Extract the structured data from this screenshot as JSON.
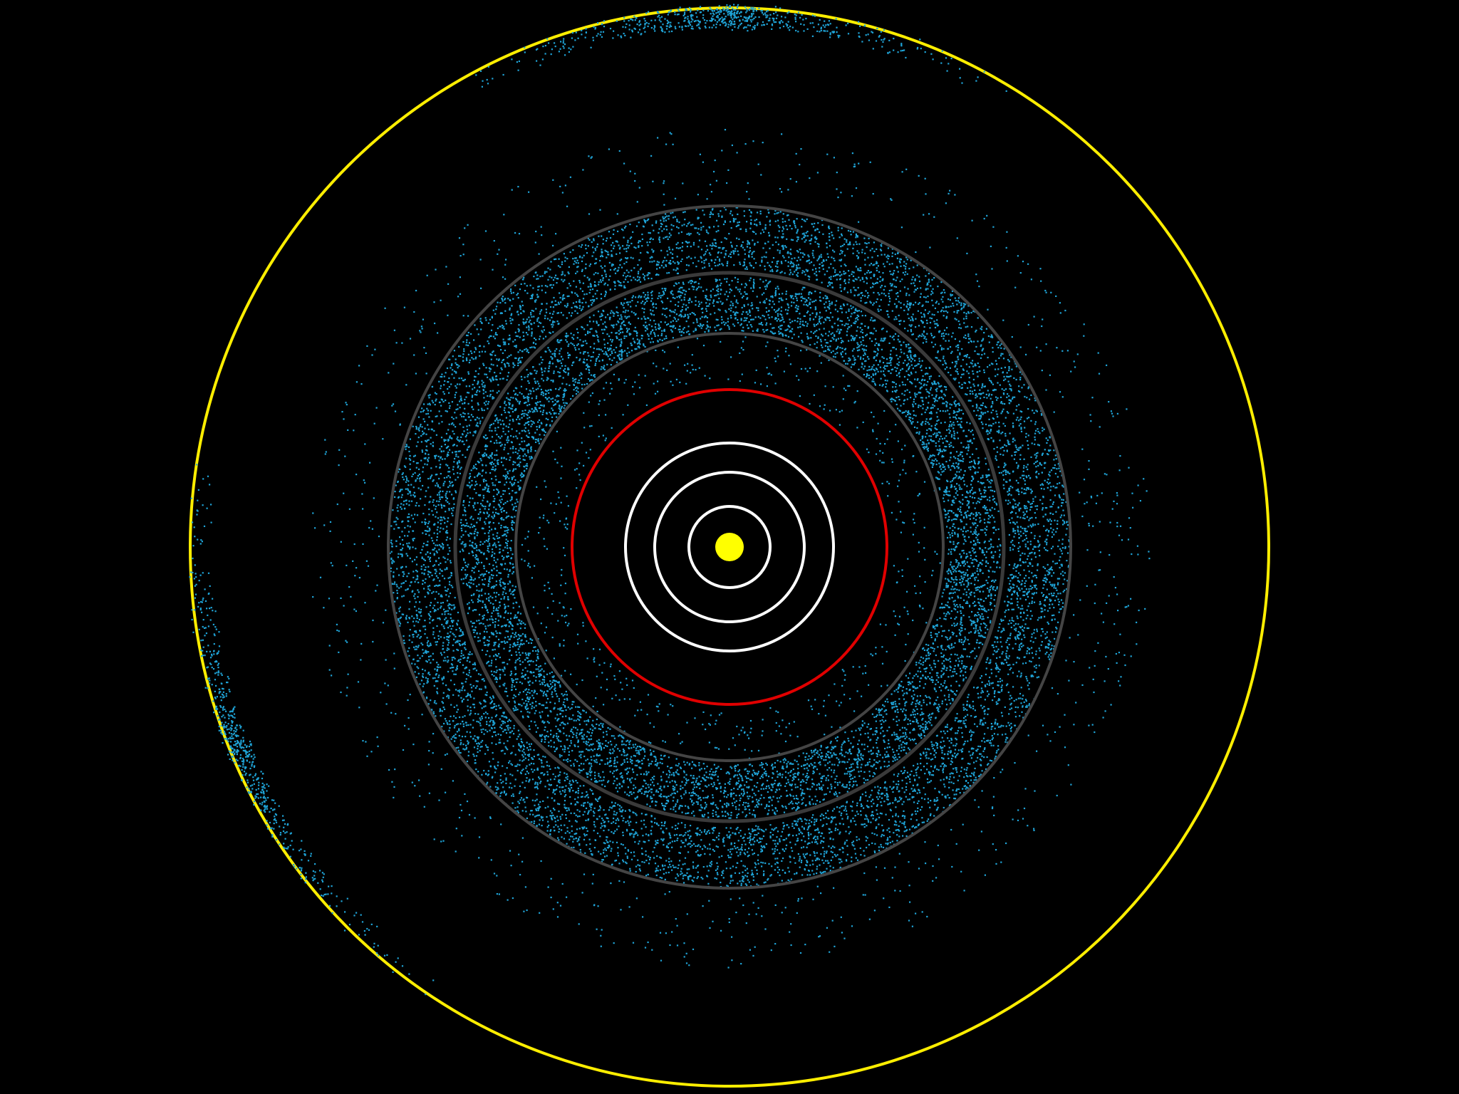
{
  "colors": {
    "background": "#000000",
    "sun": "#ffff00",
    "inner_orbit": "#ffffff",
    "mars_orbit": "#e00000",
    "gap_orbit": "#444444",
    "asteroid": "#1fa3d6",
    "jupiter_orbit": "#ffee00"
  },
  "elements": {
    "sun": {
      "name": "sun",
      "color_key": "sun"
    },
    "orbits": [
      {
        "name": "orbit-inner-1",
        "color_key": "inner_orbit"
      },
      {
        "name": "orbit-inner-2",
        "color_key": "inner_orbit"
      },
      {
        "name": "orbit-inner-3",
        "color_key": "inner_orbit"
      },
      {
        "name": "orbit-mars",
        "color_key": "mars_orbit"
      },
      {
        "name": "orbit-belt-inner-edge",
        "color_key": "gap_orbit"
      },
      {
        "name": "orbit-belt-outer-edge",
        "color_key": "gap_orbit"
      },
      {
        "name": "orbit-jupiter",
        "color_key": "jupiter_orbit"
      }
    ],
    "asteroid_belt": {
      "name": "asteroid-belt",
      "color_key": "asteroid"
    }
  }
}
